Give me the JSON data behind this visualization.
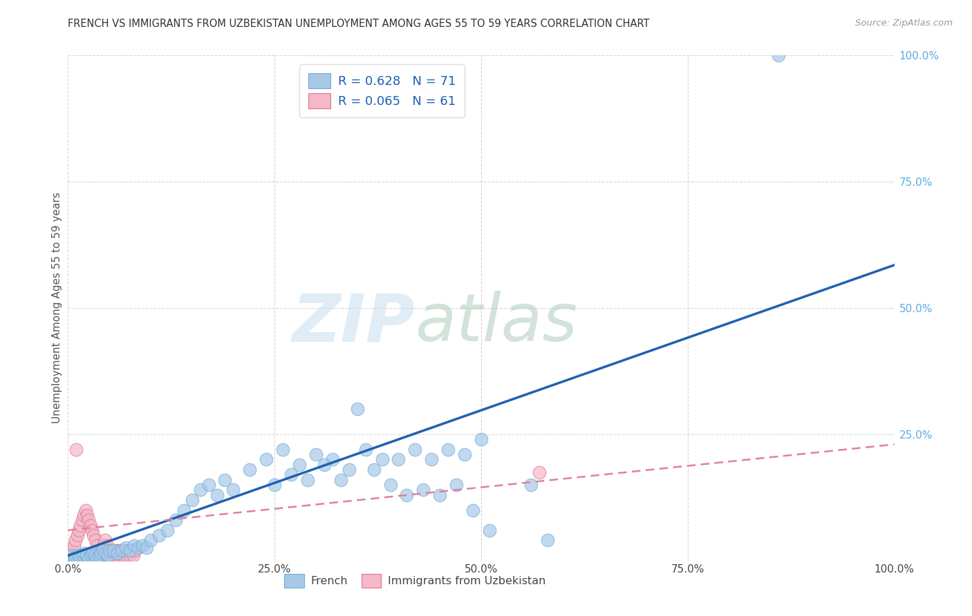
{
  "title": "FRENCH VS IMMIGRANTS FROM UZBEKISTAN UNEMPLOYMENT AMONG AGES 55 TO 59 YEARS CORRELATION CHART",
  "source": "Source: ZipAtlas.com",
  "ylabel": "Unemployment Among Ages 55 to 59 years",
  "xlim": [
    0,
    1.0
  ],
  "ylim": [
    0,
    1.0
  ],
  "xticks": [
    0.0,
    0.25,
    0.5,
    0.75,
    1.0
  ],
  "yticks": [
    0.0,
    0.25,
    0.5,
    0.75,
    1.0
  ],
  "xticklabels": [
    "0.0%",
    "25.0%",
    "50.0%",
    "75.0%",
    "100.0%"
  ],
  "yticklabels": [
    "",
    "25.0%",
    "50.0%",
    "75.0%",
    "100.0%"
  ],
  "french_color": "#a8c8e8",
  "french_edge_color": "#6baed6",
  "uzbek_color": "#f4b8c8",
  "uzbek_edge_color": "#e07090",
  "french_R": 0.628,
  "french_N": 71,
  "uzbek_R": 0.065,
  "uzbek_N": 61,
  "legend_label_french": "French",
  "legend_label_uzbek": "Immigrants from Uzbekistan",
  "blue_line_color": "#2060b0",
  "pink_line_color": "#e08098",
  "blue_line_y_intercept": 0.01,
  "blue_line_slope": 0.575,
  "pink_line_y_intercept": 0.06,
  "pink_line_slope": 0.17,
  "background_color": "#ffffff",
  "grid_color": "#cccccc",
  "title_color": "#333333",
  "tick_label_color_y_right": "#5aaae0",
  "tick_label_color_x": "#444444",
  "french_scatter_x": [
    0.005,
    0.008,
    0.01,
    0.012,
    0.015,
    0.018,
    0.02,
    0.022,
    0.025,
    0.028,
    0.03,
    0.032,
    0.035,
    0.038,
    0.04,
    0.042,
    0.045,
    0.048,
    0.05,
    0.055,
    0.06,
    0.065,
    0.07,
    0.075,
    0.08,
    0.085,
    0.09,
    0.095,
    0.1,
    0.11,
    0.12,
    0.13,
    0.14,
    0.15,
    0.16,
    0.17,
    0.18,
    0.19,
    0.2,
    0.22,
    0.24,
    0.26,
    0.28,
    0.3,
    0.32,
    0.34,
    0.36,
    0.38,
    0.4,
    0.42,
    0.44,
    0.46,
    0.48,
    0.5,
    0.25,
    0.27,
    0.29,
    0.31,
    0.33,
    0.35,
    0.37,
    0.39,
    0.41,
    0.43,
    0.45,
    0.47,
    0.49,
    0.51,
    0.56,
    0.58,
    0.86
  ],
  "french_scatter_y": [
    0.01,
    0.005,
    0.008,
    0.01,
    0.005,
    0.01,
    0.015,
    0.01,
    0.005,
    0.01,
    0.015,
    0.01,
    0.005,
    0.01,
    0.015,
    0.02,
    0.015,
    0.01,
    0.02,
    0.02,
    0.015,
    0.02,
    0.025,
    0.02,
    0.03,
    0.025,
    0.03,
    0.025,
    0.04,
    0.05,
    0.06,
    0.08,
    0.1,
    0.12,
    0.14,
    0.15,
    0.13,
    0.16,
    0.14,
    0.18,
    0.2,
    0.22,
    0.19,
    0.21,
    0.2,
    0.18,
    0.22,
    0.2,
    0.2,
    0.22,
    0.2,
    0.22,
    0.21,
    0.24,
    0.15,
    0.17,
    0.16,
    0.19,
    0.16,
    0.3,
    0.18,
    0.15,
    0.13,
    0.14,
    0.13,
    0.15,
    0.1,
    0.06,
    0.15,
    0.04,
    1.0
  ],
  "uzbek_scatter_x": [
    0.002,
    0.004,
    0.006,
    0.008,
    0.01,
    0.012,
    0.014,
    0.016,
    0.018,
    0.02,
    0.022,
    0.024,
    0.026,
    0.028,
    0.03,
    0.032,
    0.034,
    0.036,
    0.038,
    0.04,
    0.005,
    0.007,
    0.009,
    0.011,
    0.013,
    0.015,
    0.017,
    0.019,
    0.021,
    0.023,
    0.025,
    0.027,
    0.029,
    0.031,
    0.033,
    0.035,
    0.037,
    0.039,
    0.041,
    0.043,
    0.045,
    0.047,
    0.049,
    0.051,
    0.053,
    0.055,
    0.057,
    0.059,
    0.061,
    0.063,
    0.065,
    0.067,
    0.069,
    0.071,
    0.073,
    0.075,
    0.077,
    0.079,
    0.081,
    0.57,
    0.01
  ],
  "uzbek_scatter_y": [
    0.005,
    0.01,
    0.005,
    0.01,
    0.005,
    0.01,
    0.005,
    0.01,
    0.005,
    0.01,
    0.005,
    0.01,
    0.005,
    0.01,
    0.005,
    0.01,
    0.005,
    0.01,
    0.005,
    0.01,
    0.02,
    0.03,
    0.04,
    0.05,
    0.06,
    0.07,
    0.08,
    0.09,
    0.1,
    0.09,
    0.08,
    0.07,
    0.06,
    0.05,
    0.04,
    0.03,
    0.02,
    0.01,
    0.02,
    0.03,
    0.04,
    0.03,
    0.02,
    0.01,
    0.02,
    0.01,
    0.02,
    0.01,
    0.02,
    0.01,
    0.02,
    0.01,
    0.02,
    0.01,
    0.02,
    0.01,
    0.02,
    0.01,
    0.02,
    0.175,
    0.22
  ]
}
